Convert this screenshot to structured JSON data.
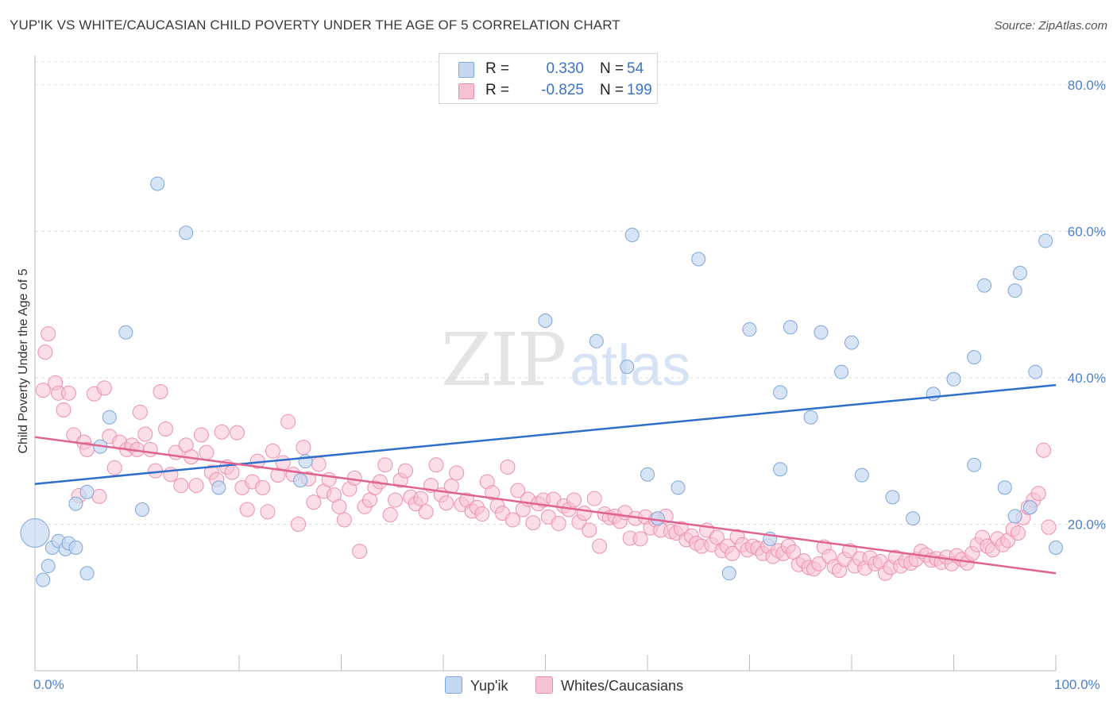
{
  "title": "YUP'IK VS WHITE/CAUCASIAN CHILD POVERTY UNDER THE AGE OF 5 CORRELATION CHART",
  "source": "Source: ZipAtlas.com",
  "watermark": {
    "zip": "ZIP",
    "atlas": "atlas"
  },
  "legend": {
    "r_label": "R =",
    "n_label": "N =",
    "rows": [
      {
        "r": "0.330",
        "n": "54"
      },
      {
        "r": "-0.825",
        "n": "199"
      }
    ]
  },
  "colors": {
    "blue_fill": "#c5d8f2",
    "blue_stroke": "#7ea6db",
    "blue_line": "#2f6fc9",
    "pink_fill": "#f7c3d3",
    "pink_stroke": "#ec8fae",
    "pink_line": "#e0628f",
    "axis_text": "#4a7fcf",
    "grid": "#dcdcdc"
  },
  "chart_data": {
    "type": "scatter",
    "xlabel": "",
    "ylabel": "Child Poverty Under the Age of 5",
    "xlim": [
      0,
      100
    ],
    "ylim": [
      0,
      84
    ],
    "x_tick_labels": [
      "0.0%",
      "100.0%"
    ],
    "y_ticks": [
      20,
      40,
      60,
      80
    ],
    "y_tick_labels": [
      "20.0%",
      "40.0%",
      "60.0%",
      "80.0%"
    ],
    "grid": "horizontal dashed",
    "legend_position": "top-center",
    "series": [
      {
        "name": "Yup'ik",
        "color": "#c5d8f2",
        "trend": {
          "x": [
            0,
            100
          ],
          "y": [
            25.5,
            39.0
          ]
        },
        "points": [
          [
            0,
            18.8
          ],
          [
            0.8,
            12.4
          ],
          [
            1.3,
            14.3
          ],
          [
            1.7,
            16.8
          ],
          [
            2.3,
            17.7
          ],
          [
            3.0,
            16.6
          ],
          [
            3.3,
            17.4
          ],
          [
            4.0,
            16.8
          ],
          [
            4.0,
            22.8
          ],
          [
            5.1,
            13.3
          ],
          [
            5.1,
            24.4
          ],
          [
            6.4,
            30.6
          ],
          [
            7.3,
            34.6
          ],
          [
            8.9,
            46.2
          ],
          [
            10.5,
            22.0
          ],
          [
            12.0,
            66.5
          ],
          [
            14.8,
            59.8
          ],
          [
            18.0,
            25.0
          ],
          [
            26.0,
            26.0
          ],
          [
            26.5,
            28.6
          ],
          [
            50.0,
            47.8
          ],
          [
            55.0,
            45.0
          ],
          [
            58.0,
            41.5
          ],
          [
            58.5,
            59.5
          ],
          [
            60.0,
            26.8
          ],
          [
            61.0,
            20.8
          ],
          [
            63.0,
            25.0
          ],
          [
            65.0,
            56.2
          ],
          [
            68.0,
            13.3
          ],
          [
            70.0,
            46.6
          ],
          [
            72.0,
            18.0
          ],
          [
            73.0,
            38.0
          ],
          [
            73.0,
            27.5
          ],
          [
            74.0,
            46.9
          ],
          [
            76.0,
            34.6
          ],
          [
            77.0,
            46.2
          ],
          [
            79.0,
            40.8
          ],
          [
            80.0,
            44.8
          ],
          [
            81.0,
            26.7
          ],
          [
            84.0,
            23.7
          ],
          [
            86.0,
            20.8
          ],
          [
            88.0,
            37.8
          ],
          [
            90.0,
            39.8
          ],
          [
            92.0,
            28.1
          ],
          [
            92.0,
            42.8
          ],
          [
            93.0,
            52.6
          ],
          [
            95.0,
            25.0
          ],
          [
            96.0,
            51.9
          ],
          [
            96.0,
            21.1
          ],
          [
            96.5,
            54.3
          ],
          [
            97.5,
            22.3
          ],
          [
            98.0,
            40.8
          ],
          [
            99.0,
            58.7
          ],
          [
            100,
            16.8
          ]
        ]
      },
      {
        "name": "Whites/Caucasians",
        "color": "#f7c3d3",
        "trend": {
          "x": [
            0,
            100
          ],
          "y": [
            31.9,
            13.3
          ]
        },
        "points": [
          [
            0.8,
            38.3
          ],
          [
            1.0,
            43.5
          ],
          [
            1.3,
            46.0
          ],
          [
            2.0,
            39.3
          ],
          [
            2.3,
            37.9
          ],
          [
            2.8,
            35.6
          ],
          [
            3.3,
            37.9
          ],
          [
            3.8,
            32.2
          ],
          [
            4.3,
            23.9
          ],
          [
            4.8,
            31.2
          ],
          [
            5.1,
            30.2
          ],
          [
            5.8,
            37.8
          ],
          [
            6.3,
            23.8
          ],
          [
            6.8,
            38.6
          ],
          [
            7.3,
            32.0
          ],
          [
            7.8,
            27.7
          ],
          [
            8.3,
            31.2
          ],
          [
            9.0,
            30.2
          ],
          [
            9.5,
            30.8
          ],
          [
            10.0,
            30.2
          ],
          [
            10.3,
            35.3
          ],
          [
            10.8,
            32.3
          ],
          [
            11.3,
            30.2
          ],
          [
            11.8,
            27.3
          ],
          [
            12.3,
            38.1
          ],
          [
            12.8,
            33.0
          ],
          [
            13.3,
            26.8
          ],
          [
            13.8,
            29.8
          ],
          [
            14.3,
            25.3
          ],
          [
            14.8,
            30.8
          ],
          [
            15.3,
            29.2
          ],
          [
            15.8,
            25.3
          ],
          [
            16.3,
            32.2
          ],
          [
            16.8,
            29.8
          ],
          [
            17.3,
            27.1
          ],
          [
            17.8,
            26.1
          ],
          [
            18.3,
            32.6
          ],
          [
            18.8,
            27.8
          ],
          [
            19.3,
            27.1
          ],
          [
            19.8,
            32.5
          ],
          [
            20.3,
            25.0
          ],
          [
            20.8,
            22.0
          ],
          [
            21.3,
            25.8
          ],
          [
            21.8,
            28.6
          ],
          [
            22.3,
            25.0
          ],
          [
            22.8,
            21.7
          ],
          [
            23.3,
            30.0
          ],
          [
            23.8,
            26.7
          ],
          [
            24.3,
            28.4
          ],
          [
            24.8,
            34.0
          ],
          [
            25.3,
            26.8
          ],
          [
            25.8,
            20.0
          ],
          [
            26.3,
            30.5
          ],
          [
            26.8,
            26.2
          ],
          [
            27.3,
            23.0
          ],
          [
            27.8,
            28.2
          ],
          [
            28.3,
            24.5
          ],
          [
            28.8,
            26.1
          ],
          [
            29.3,
            24.0
          ],
          [
            29.8,
            22.4
          ],
          [
            30.3,
            20.6
          ],
          [
            30.8,
            24.8
          ],
          [
            31.3,
            26.3
          ],
          [
            31.8,
            16.3
          ],
          [
            32.3,
            22.4
          ],
          [
            32.8,
            23.3
          ],
          [
            33.3,
            25.0
          ],
          [
            33.8,
            25.8
          ],
          [
            34.3,
            28.1
          ],
          [
            34.8,
            21.3
          ],
          [
            35.3,
            23.3
          ],
          [
            35.8,
            26.0
          ],
          [
            36.3,
            27.3
          ],
          [
            36.8,
            23.7
          ],
          [
            37.3,
            22.8
          ],
          [
            37.8,
            23.5
          ],
          [
            38.3,
            21.7
          ],
          [
            38.8,
            25.3
          ],
          [
            39.3,
            28.1
          ],
          [
            39.8,
            24.0
          ],
          [
            40.3,
            22.9
          ],
          [
            40.8,
            25.2
          ],
          [
            41.3,
            27.0
          ],
          [
            41.8,
            22.7
          ],
          [
            42.3,
            23.3
          ],
          [
            42.8,
            21.8
          ],
          [
            43.3,
            22.3
          ],
          [
            43.8,
            21.4
          ],
          [
            44.3,
            25.8
          ],
          [
            44.8,
            24.3
          ],
          [
            45.3,
            22.5
          ],
          [
            45.8,
            21.5
          ],
          [
            46.3,
            27.8
          ],
          [
            46.8,
            20.6
          ],
          [
            47.3,
            24.6
          ],
          [
            47.8,
            22.0
          ],
          [
            48.3,
            23.4
          ],
          [
            48.8,
            20.2
          ],
          [
            49.3,
            22.8
          ],
          [
            49.8,
            23.3
          ],
          [
            50.3,
            21.0
          ],
          [
            50.8,
            23.4
          ],
          [
            51.3,
            20.1
          ],
          [
            51.8,
            22.5
          ],
          [
            52.3,
            22.0
          ],
          [
            52.8,
            23.3
          ],
          [
            53.3,
            20.3
          ],
          [
            53.8,
            21.5
          ],
          [
            54.3,
            19.2
          ],
          [
            54.8,
            23.5
          ],
          [
            55.3,
            17.0
          ],
          [
            55.8,
            21.4
          ],
          [
            56.3,
            20.9
          ],
          [
            56.8,
            21.1
          ],
          [
            57.3,
            20.4
          ],
          [
            57.8,
            21.6
          ],
          [
            58.3,
            18.1
          ],
          [
            58.8,
            20.8
          ],
          [
            59.3,
            18.0
          ],
          [
            59.8,
            21.0
          ],
          [
            60.3,
            19.5
          ],
          [
            60.8,
            20.6
          ],
          [
            61.3,
            19.2
          ],
          [
            61.8,
            21.1
          ],
          [
            62.3,
            19.0
          ],
          [
            62.8,
            18.8
          ],
          [
            63.3,
            19.4
          ],
          [
            63.8,
            17.9
          ],
          [
            64.3,
            18.4
          ],
          [
            64.8,
            17.4
          ],
          [
            65.3,
            17.0
          ],
          [
            65.8,
            19.2
          ],
          [
            66.3,
            17.2
          ],
          [
            66.8,
            18.2
          ],
          [
            67.3,
            16.4
          ],
          [
            67.8,
            17.0
          ],
          [
            68.3,
            16.0
          ],
          [
            68.8,
            18.3
          ],
          [
            69.3,
            17.2
          ],
          [
            69.8,
            16.5
          ],
          [
            70.3,
            17.0
          ],
          [
            70.8,
            16.7
          ],
          [
            71.3,
            16.0
          ],
          [
            71.8,
            17.0
          ],
          [
            72.3,
            15.6
          ],
          [
            72.8,
            16.4
          ],
          [
            73.3,
            16.0
          ],
          [
            73.8,
            17.0
          ],
          [
            74.3,
            16.2
          ],
          [
            74.8,
            14.5
          ],
          [
            75.3,
            15.0
          ],
          [
            75.8,
            14.1
          ],
          [
            76.3,
            13.9
          ],
          [
            76.8,
            14.6
          ],
          [
            77.3,
            16.9
          ],
          [
            77.8,
            15.6
          ],
          [
            78.3,
            14.2
          ],
          [
            78.8,
            13.7
          ],
          [
            79.3,
            15.2
          ],
          [
            79.8,
            16.4
          ],
          [
            80.3,
            14.3
          ],
          [
            80.8,
            15.3
          ],
          [
            81.3,
            14.0
          ],
          [
            81.8,
            15.4
          ],
          [
            82.3,
            14.6
          ],
          [
            82.8,
            14.9
          ],
          [
            83.3,
            13.3
          ],
          [
            83.8,
            14.1
          ],
          [
            84.3,
            15.5
          ],
          [
            84.8,
            14.3
          ],
          [
            85.3,
            15.0
          ],
          [
            85.8,
            14.7
          ],
          [
            86.3,
            15.2
          ],
          [
            86.8,
            16.3
          ],
          [
            87.3,
            15.8
          ],
          [
            87.8,
            15.1
          ],
          [
            88.3,
            15.3
          ],
          [
            88.8,
            14.8
          ],
          [
            89.3,
            15.5
          ],
          [
            89.8,
            14.6
          ],
          [
            90.3,
            15.7
          ],
          [
            90.8,
            15.2
          ],
          [
            91.3,
            14.7
          ],
          [
            91.8,
            16.0
          ],
          [
            92.3,
            17.2
          ],
          [
            92.8,
            18.2
          ],
          [
            93.3,
            17.0
          ],
          [
            93.8,
            16.5
          ],
          [
            94.3,
            18.0
          ],
          [
            94.8,
            17.2
          ],
          [
            95.3,
            17.8
          ],
          [
            95.8,
            19.3
          ],
          [
            96.3,
            18.8
          ],
          [
            96.8,
            20.9
          ],
          [
            97.3,
            22.3
          ],
          [
            97.8,
            23.3
          ],
          [
            98.3,
            24.2
          ],
          [
            98.8,
            30.1
          ],
          [
            99.3,
            19.6
          ]
        ]
      }
    ]
  }
}
